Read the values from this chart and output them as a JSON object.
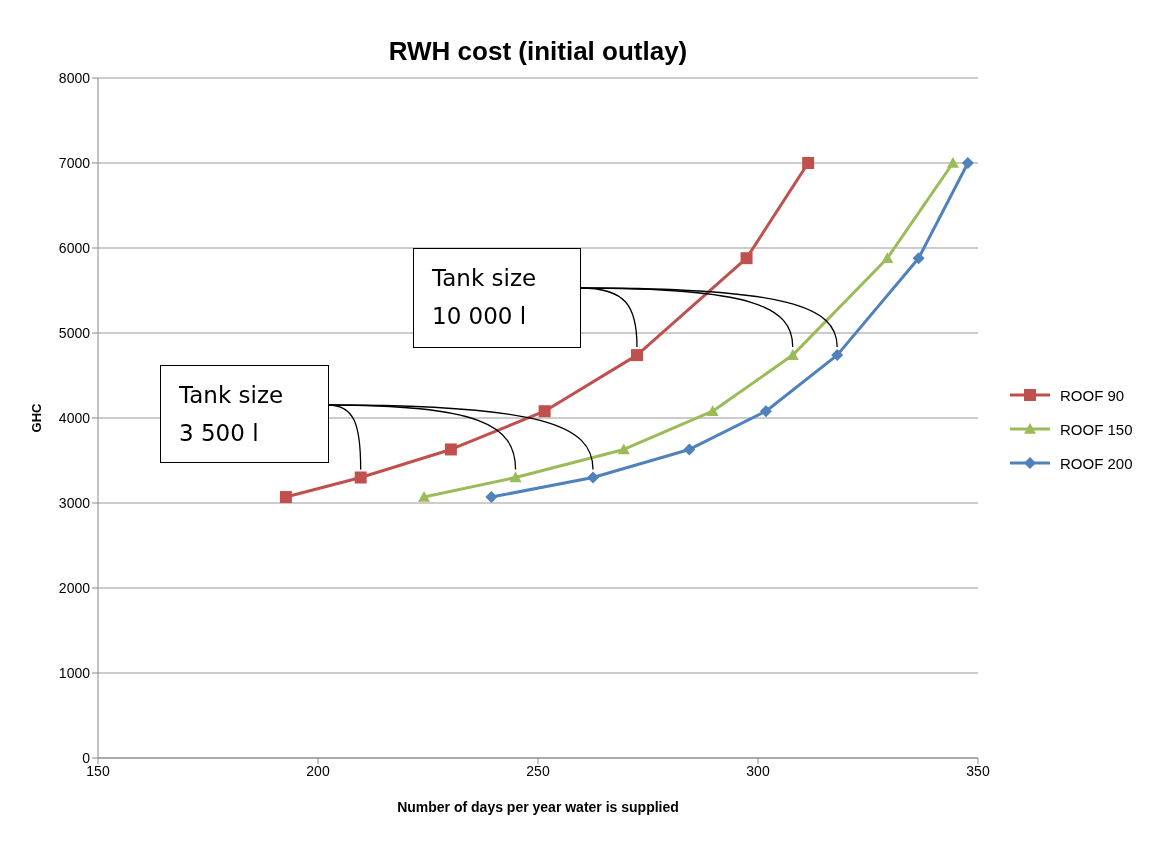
{
  "chart_data": {
    "type": "line",
    "title": "RWH cost (initial outlay)",
    "xlabel": "Number of days per year water is supplied",
    "ylabel": "GHC",
    "xlim": [
      150,
      350
    ],
    "xticks": [
      150,
      200,
      250,
      300,
      350
    ],
    "ylim": [
      0,
      8000
    ],
    "yticks": [
      0,
      1000,
      2000,
      3000,
      4000,
      5000,
      6000,
      7000,
      8000
    ],
    "grid": "y",
    "legend": "right",
    "series": [
      {
        "name": "ROOF 90",
        "color": "#c0504d",
        "marker": "square",
        "x": [
          192.7,
          209.7,
          230.2,
          251.5,
          272.5,
          297.4,
          311.4
        ],
        "values": [
          3070,
          3300,
          3630,
          4080,
          4740,
          5880,
          7000
        ]
      },
      {
        "name": "ROOF 150",
        "color": "#9bbb59",
        "marker": "triangle",
        "x": [
          224.1,
          244.9,
          269.5,
          289.7,
          307.9,
          329.4,
          344.3
        ],
        "values": [
          3070,
          3300,
          3630,
          4080,
          4740,
          5880,
          7000
        ]
      },
      {
        "name": "ROOF 200",
        "color": "#4f81bd",
        "marker": "diamond",
        "x": [
          239.4,
          262.5,
          284.4,
          301.8,
          318,
          336.5,
          347.7
        ],
        "values": [
          3070,
          3300,
          3630,
          4080,
          4740,
          5880,
          7000
        ]
      }
    ],
    "annotations": [
      "Tank size\n3 500 l",
      "Tank size\n10 000 l"
    ]
  }
}
